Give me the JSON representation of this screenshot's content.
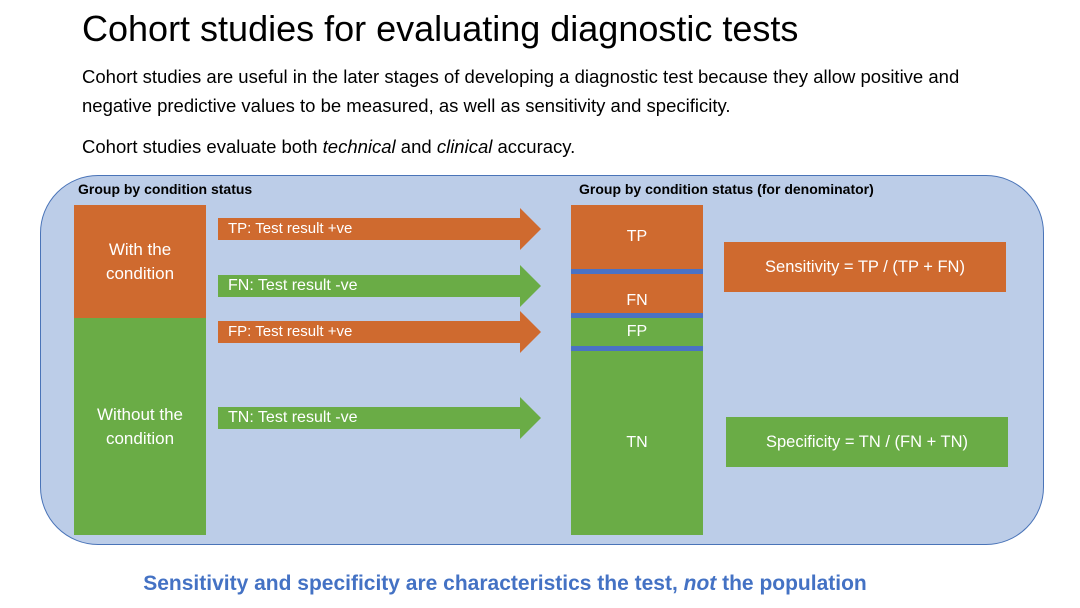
{
  "title": "Cohort studies for evaluating diagnostic tests",
  "intro": {
    "p1": "Cohort studies are useful in the later stages of developing a diagnostic test because they allow positive and negative predictive values to be measured, as well as sensitivity and specificity.",
    "p2_pre": "Cohort studies evaluate both ",
    "p2_em1": "technical",
    "p2_mid": " and ",
    "p2_em2": "clinical",
    "p2_post": " accuracy."
  },
  "left_group": {
    "label": "Group by condition status",
    "with": "With the condition",
    "without": "Without the condition"
  },
  "arrows": {
    "tp": "TP: Test result +ve",
    "fn": "FN: Test result -ve",
    "fp": "FP: Test result +ve",
    "tn": "TN: Test result -ve"
  },
  "right_group": {
    "label": "Group by condition status (for denominator)",
    "tp": "TP",
    "fn": "FN",
    "fp": "FP",
    "tn": "TN"
  },
  "formulas": {
    "sensitivity": "Sensitivity = TP / (TP + FN)",
    "specificity": "Specificity = TN / (FN + TN)"
  },
  "footer": {
    "pre": "Sensitivity and specificity are characteristics the test, ",
    "em": "not",
    "post": " the population"
  },
  "colors": {
    "orange": "#cf6a2f",
    "green": "#6aac46",
    "panel": "#bccde8",
    "panel_border": "#4a74b8",
    "separator": "#4a72c4",
    "footer_text": "#4472c4"
  }
}
